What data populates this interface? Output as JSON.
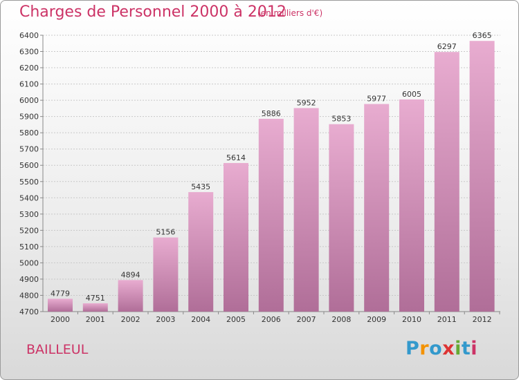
{
  "title": "Charges de Personnel 2000 à 2012",
  "subtitle": "(en milliers d'€)",
  "commune": "BAILLEUL",
  "brand": {
    "letters": [
      "P",
      "r",
      "o",
      "x",
      "i",
      "t",
      "i"
    ],
    "colors": [
      "#3399cc",
      "#f39200",
      "#3399cc",
      "#dd3333",
      "#66aa33",
      "#3399cc",
      "#cc3366"
    ]
  },
  "colors": {
    "bar_top": "#e8acd0",
    "bar_bottom": "#b06e98",
    "text": "#cc3366",
    "grid": "#c8c8c8"
  },
  "chart_data": {
    "type": "bar",
    "title": "Charges de Personnel 2000 à 2012",
    "subtitle": "(en milliers d'€)",
    "categories": [
      "2000",
      "2001",
      "2002",
      "2003",
      "2004",
      "2005",
      "2006",
      "2007",
      "2008",
      "2009",
      "2010",
      "2011",
      "2012"
    ],
    "values": [
      4779,
      4751,
      4894,
      5156,
      5435,
      5614,
      5886,
      5952,
      5853,
      5977,
      6005,
      6297,
      6365
    ],
    "ylim": [
      4700,
      6400
    ],
    "yticks": [
      4700,
      4800,
      4900,
      5000,
      5100,
      5200,
      5300,
      5400,
      5500,
      5600,
      5700,
      5800,
      5900,
      6000,
      6100,
      6200,
      6300,
      6400
    ],
    "grid": true,
    "data_labels": true
  }
}
